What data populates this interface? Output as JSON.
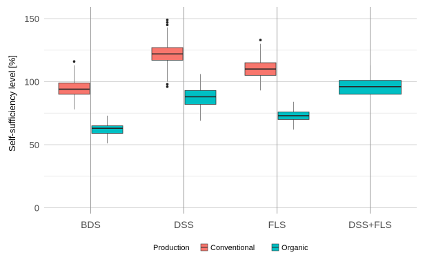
{
  "chart_data": {
    "type": "boxplot",
    "ylabel": "Self-sufficiency level [%]",
    "ylim": [
      0,
      155
    ],
    "y_ticks": [
      0,
      50,
      100,
      150
    ],
    "categories": [
      "BDS",
      "DSS",
      "FLS",
      "DSS+FLS"
    ],
    "legend": {
      "title": "Production",
      "position": "bottom",
      "items": [
        {
          "name": "Conventional",
          "color": "#F8766D"
        },
        {
          "name": "Organic",
          "color": "#00BFC4"
        }
      ]
    },
    "series": [
      {
        "name": "Conventional",
        "color": "#F8766D",
        "boxes": [
          {
            "category": "BDS",
            "min": 78,
            "q1": 90,
            "median": 94,
            "q3": 99,
            "max": 113,
            "outliers": [
              116
            ]
          },
          {
            "category": "DSS",
            "min": 100,
            "q1": 117,
            "median": 122,
            "q3": 127,
            "max": 143,
            "outliers": [
              96,
              98,
              145,
              147,
              149
            ]
          },
          {
            "category": "FLS",
            "min": 93,
            "q1": 105,
            "median": 110,
            "q3": 115,
            "max": 130,
            "outliers": [
              133
            ]
          }
        ]
      },
      {
        "name": "Organic",
        "color": "#00BFC4",
        "boxes": [
          {
            "category": "BDS",
            "min": 51,
            "q1": 59,
            "median": 63,
            "q3": 65,
            "max": 73,
            "outliers": []
          },
          {
            "category": "DSS",
            "min": 69,
            "q1": 82,
            "median": 88,
            "q3": 93,
            "max": 106,
            "outliers": []
          },
          {
            "category": "FLS",
            "min": 62,
            "q1": 70,
            "median": 73,
            "q3": 76,
            "max": 84,
            "outliers": []
          },
          {
            "category": "DSS+FLS",
            "min": 90,
            "q1": 90,
            "median": 96,
            "q3": 101,
            "max": 113,
            "outliers": []
          }
        ]
      }
    ]
  }
}
